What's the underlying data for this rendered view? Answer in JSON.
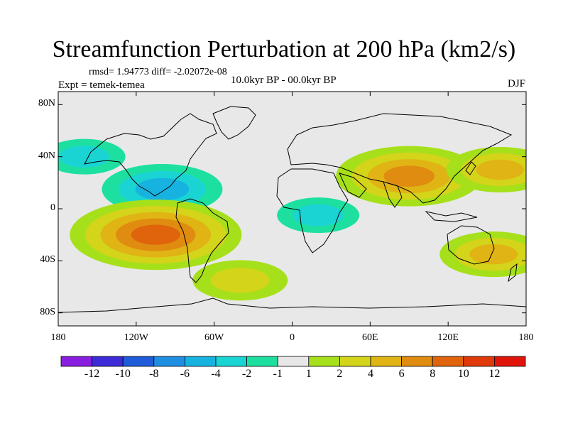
{
  "title": "Streamfunction Perturbation at 200 hPa (km2/s)",
  "stats": "rmsd= 1.94773 diff= -2.02072e-08",
  "experiment": "Expt = temek-temea",
  "period": "10.0kyr BP - 00.0kyr BP",
  "season": "DJF",
  "map": {
    "projection": "cylindrical-equidistant",
    "lat_labels": [
      "80N",
      "40N",
      "0",
      "40S",
      "80S"
    ],
    "lon_labels": [
      "180",
      "120W",
      "60W",
      "0",
      "60E",
      "120E",
      "180"
    ],
    "lat_values": [
      80,
      40,
      0,
      -40,
      -80
    ],
    "lon_values": [
      -180,
      -120,
      -60,
      0,
      60,
      120,
      180
    ],
    "anomalies": [
      {
        "lon": -100,
        "lat": 15,
        "value": -5,
        "region": "tropical E Pacific"
      },
      {
        "lon": -105,
        "lat": -20,
        "value": 9,
        "region": "SE Pacific"
      },
      {
        "lon": 90,
        "lat": 25,
        "value": 7,
        "region": "South Asia"
      },
      {
        "lon": 160,
        "lat": 30,
        "value": 4,
        "region": "NW Pacific"
      },
      {
        "lon": -40,
        "lat": -55,
        "value": 3,
        "region": "S Atlantic"
      },
      {
        "lon": 20,
        "lat": -5,
        "value": -2,
        "region": "Africa/Indian"
      },
      {
        "lon": -160,
        "lat": 40,
        "value": -2,
        "region": "N Pacific"
      },
      {
        "lon": 155,
        "lat": -35,
        "value": 4,
        "region": "Tasman"
      }
    ]
  },
  "colorbar": {
    "labels": [
      "-12",
      "-10",
      "-8",
      "-6",
      "-4",
      "-2",
      "-1",
      "1",
      "2",
      "4",
      "6",
      "8",
      "10",
      "12"
    ],
    "colors": [
      "#8a1ee0",
      "#3c2bd6",
      "#1f5cd9",
      "#1e8fe0",
      "#17b3e0",
      "#1ad4d4",
      "#1de0a0",
      "#e8e8e8",
      "#a6e01a",
      "#d4d41a",
      "#e0b414",
      "#e08c10",
      "#e0640c",
      "#e03a0a",
      "#e0140a"
    ]
  }
}
